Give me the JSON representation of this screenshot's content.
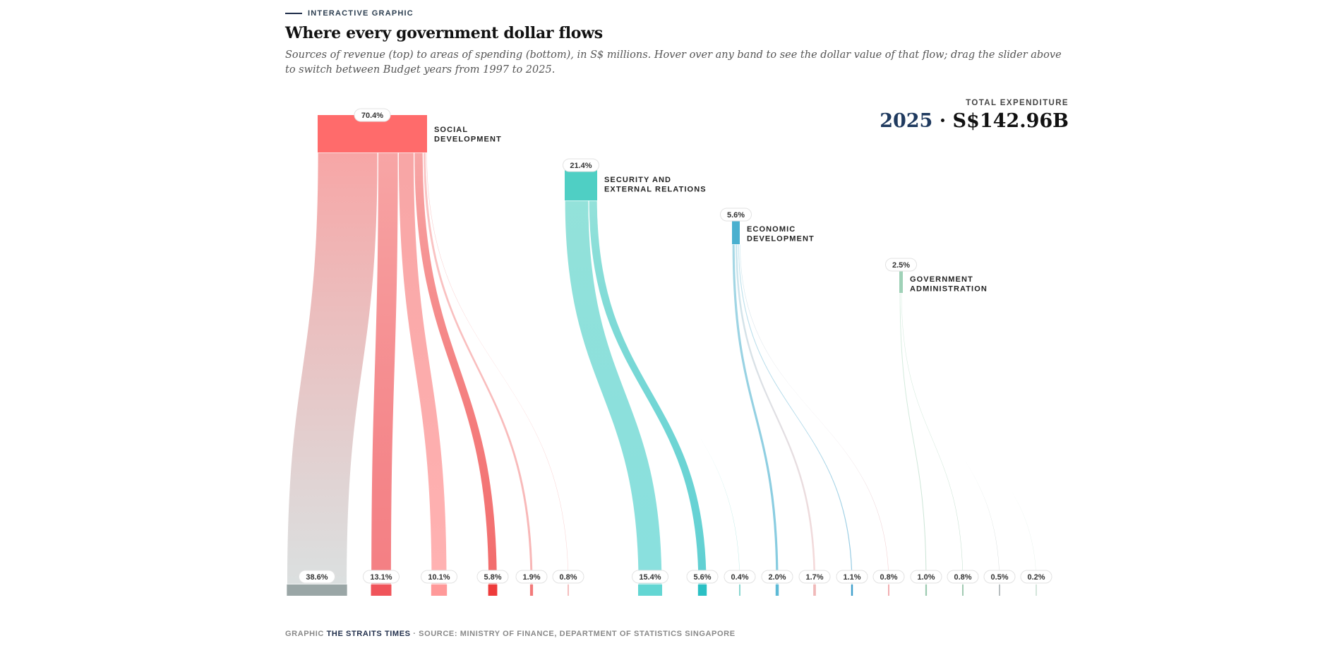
{
  "kicker": "INTERACTIVE GRAPHIC",
  "title": "Where every government dollar flows",
  "subtitle": "Sources of revenue (top) to areas of spending (bottom), in S$ millions. Hover over any band to see the dollar value of that flow; drag the slider above to switch between Budget years from 1997 to 2025.",
  "total": {
    "label": "TOTAL EXPENDITURE",
    "year": "2025",
    "separator": " · ",
    "amount": "S$142.96B"
  },
  "footer": {
    "prefix": "GRAPHIC ",
    "brand": "THE STRAITS TIMES",
    "source": " · SOURCE: MINISTRY OF FINANCE, DEPARTMENT OF STATISTICS SINGAPORE"
  },
  "chart_data": {
    "type": "sankey",
    "unit": "percent of total expenditure",
    "year": 2025,
    "total": "S$142.96B",
    "sources": [
      {
        "id": "social",
        "label_lines": [
          "SOCIAL",
          "DEVELOPMENT"
        ],
        "value": 70.4,
        "value_label": "70.4%",
        "color": "#ff6b6b",
        "flow_color": "#f7a1a1"
      },
      {
        "id": "security",
        "label_lines": [
          "SECURITY AND",
          "EXTERNAL RELATIONS"
        ],
        "value": 21.4,
        "value_label": "21.4%",
        "color": "#4fcfc4",
        "flow_color": "#8ee0d8"
      },
      {
        "id": "economic",
        "label_lines": [
          "ECONOMIC",
          "DEVELOPMENT"
        ],
        "value": 5.6,
        "value_label": "5.6%",
        "color": "#4ab0cf",
        "flow_color": "#a3d6e4"
      },
      {
        "id": "government",
        "label_lines": [
          "GOVERNMENT",
          "ADMINISTRATION"
        ],
        "value": 2.5,
        "value_label": "2.5%",
        "color": "#9fd1b7",
        "flow_color": "#bfe3cd"
      }
    ],
    "targets": [
      {
        "source": "social",
        "value": 38.6,
        "label": "38.6%",
        "color": "#9aa6a6",
        "flow_end_color": "#cfd5d5"
      },
      {
        "source": "social",
        "value": 13.1,
        "label": "13.1%",
        "color": "#f0545a"
      },
      {
        "source": "social",
        "value": 10.1,
        "label": "10.1%",
        "color": "#ff9999"
      },
      {
        "source": "social",
        "value": 5.8,
        "label": "5.8%",
        "color": "#ee3b3b"
      },
      {
        "source": "social",
        "value": 1.9,
        "label": "1.9%",
        "color": "#f27a7a"
      },
      {
        "source": "social",
        "value": 0.8,
        "label": "0.8%",
        "color": "#f3b7b7"
      },
      {
        "source": "security",
        "value": 15.4,
        "label": "15.4%",
        "color": "#63d6d3"
      },
      {
        "source": "security",
        "value": 5.6,
        "label": "5.6%",
        "color": "#2bc0c4"
      },
      {
        "source": "security",
        "value": 0.4,
        "label": "0.4%",
        "color": "#6ccdc4"
      },
      {
        "source": "economic",
        "value": 2.0,
        "label": "2.0%",
        "color": "#5dbad6"
      },
      {
        "source": "economic",
        "value": 1.7,
        "label": "1.7%",
        "color": "#f0b9b9"
      },
      {
        "source": "economic",
        "value": 1.1,
        "label": "1.1%",
        "color": "#3f9fcb"
      },
      {
        "source": "economic",
        "value": 0.8,
        "label": "0.8%",
        "color": "#f0a5a8"
      },
      {
        "source": "government",
        "value": 1.0,
        "label": "1.0%",
        "color": "#9ccab0"
      },
      {
        "source": "government",
        "value": 0.8,
        "label": "0.8%",
        "color": "#95c4a8"
      },
      {
        "source": "government",
        "value": 0.5,
        "label": "0.5%",
        "color": "#a6aeb0"
      },
      {
        "source": "government",
        "value": 0.2,
        "label": "0.2%",
        "color": "#c9dfd2"
      }
    ]
  }
}
